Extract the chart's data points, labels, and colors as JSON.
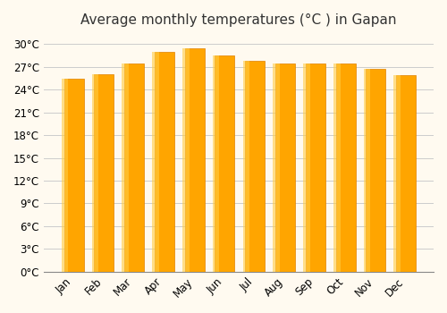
{
  "title": "Average monthly temperatures (°C ) in Gapan",
  "months": [
    "Jan",
    "Feb",
    "Mar",
    "Apr",
    "May",
    "Jun",
    "Jul",
    "Aug",
    "Sep",
    "Oct",
    "Nov",
    "Dec"
  ],
  "values": [
    25.5,
    26.0,
    27.5,
    29.0,
    29.4,
    28.5,
    27.8,
    27.4,
    27.4,
    27.5,
    26.8,
    25.9
  ],
  "bar_color_face": "#FFA500",
  "bar_color_edge": "#FFC040",
  "ylim": [
    0,
    31
  ],
  "yticks": [
    0,
    3,
    6,
    9,
    12,
    15,
    18,
    21,
    24,
    27,
    30
  ],
  "background_color": "#FFFAF0",
  "grid_color": "#CCCCCC",
  "title_fontsize": 11,
  "tick_fontsize": 8.5,
  "bar_width": 0.65
}
